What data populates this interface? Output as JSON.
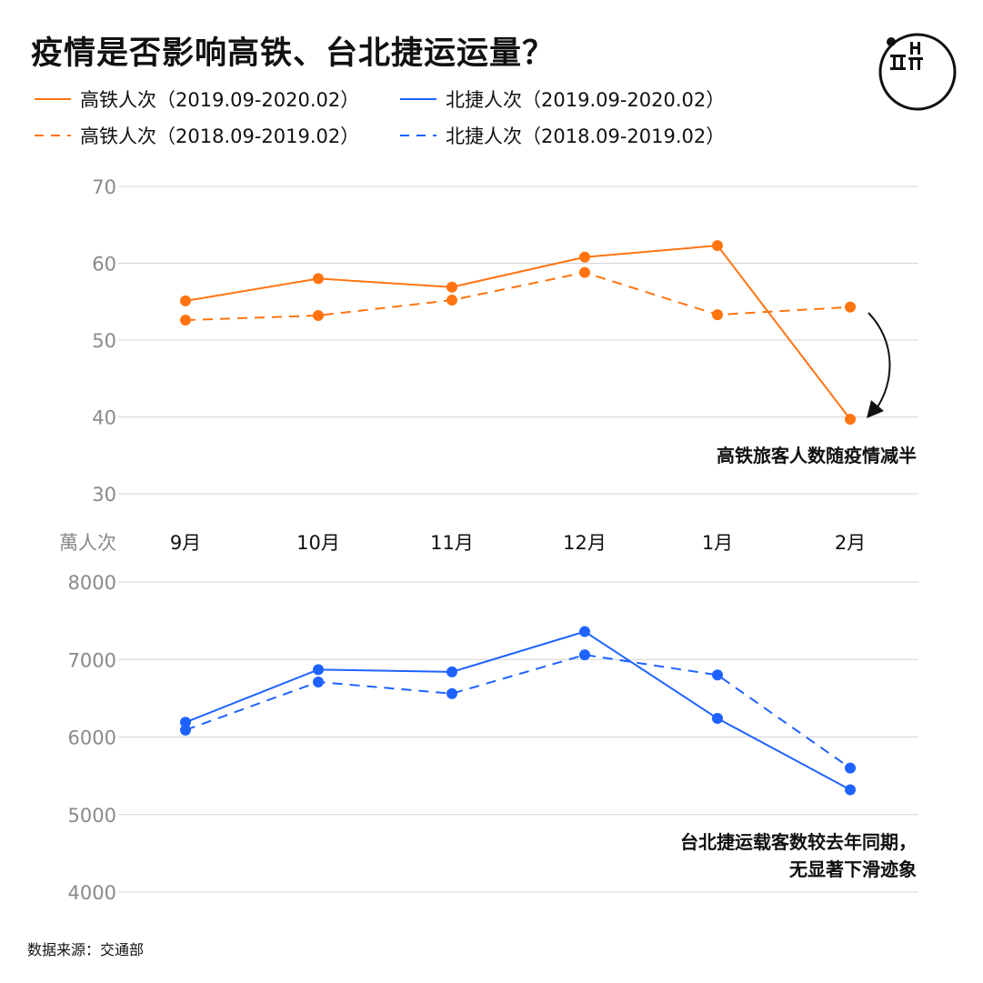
{
  "title": "疫情是否影响高铁、台北捷运运量？",
  "legend": [
    {
      "label": "高铁人次（2019.09-2020.02）",
      "color": "#ff7411",
      "dash": false
    },
    {
      "label": "北捷人次（2019.09-2020.02）",
      "color": "#1e62ff",
      "dash": false
    },
    {
      "label": "高铁人次（2018.09-2019.02）",
      "color": "#ff7411",
      "dash": true
    },
    {
      "label": "北捷人次（2018.09-2019.02）",
      "color": "#1e62ff",
      "dash": true
    }
  ],
  "source": "数据来源：交通部",
  "chart_data": [
    {
      "type": "line",
      "categories": [
        "9月",
        "10月",
        "11月",
        "12月",
        "1月",
        "2月"
      ],
      "unit_label": "萬人次",
      "ylim": [
        30,
        70
      ],
      "yticks": [
        70,
        60,
        50,
        40,
        30
      ],
      "grid": true,
      "series": [
        {
          "name": "高铁人次（2019.09-2020.02）",
          "color": "#ff7411",
          "dash": false,
          "values": [
            55.1,
            58.0,
            56.9,
            60.8,
            62.3,
            39.7
          ]
        },
        {
          "name": "高铁人次（2018.09-2019.02）",
          "color": "#ff7411",
          "dash": true,
          "values": [
            52.6,
            53.2,
            55.2,
            58.8,
            53.3,
            54.3
          ]
        }
      ],
      "annotation": "高铁旅客人数随疫情减半"
    },
    {
      "type": "line",
      "categories": [
        "9月",
        "10月",
        "11月",
        "12月",
        "1月",
        "2月"
      ],
      "ylim": [
        4000,
        8000
      ],
      "yticks": [
        8000,
        7000,
        6000,
        5000,
        4000
      ],
      "grid": true,
      "series": [
        {
          "name": "北捷人次（2019.09-2020.02）",
          "color": "#1e62ff",
          "dash": false,
          "values": [
            6190,
            6870,
            6840,
            7360,
            6240,
            5320
          ]
        },
        {
          "name": "北捷人次（2018.09-2019.02）",
          "color": "#1e62ff",
          "dash": true,
          "values": [
            6090,
            6710,
            6560,
            7060,
            6800,
            5600
          ]
        }
      ],
      "annotation": [
        "台北捷运载客数较去年同期，",
        "无显著下滑迹象"
      ]
    }
  ]
}
